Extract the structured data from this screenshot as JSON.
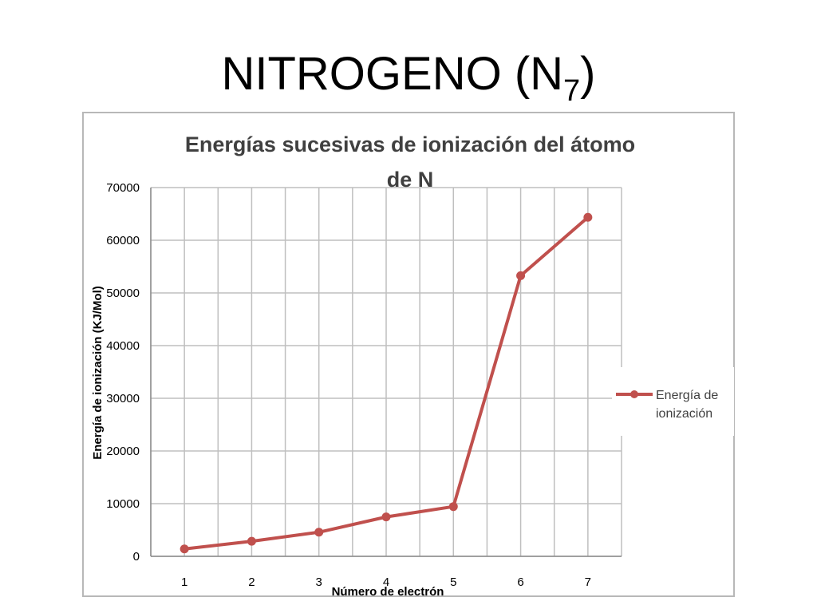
{
  "slide": {
    "title_main": "NITROGENO (N",
    "title_sub": "7",
    "title_end": ")"
  },
  "colors": {
    "series": "#c0504d",
    "grid": "#bfbfbf",
    "frame": "#b8b8b8",
    "text": "#000000"
  },
  "chart_data": {
    "type": "line",
    "title": "Energías sucesivas de ionización del átomo de N",
    "title_lines": [
      "Energías sucesivas de ionización del átomo",
      "de N"
    ],
    "xlabel": "Número de electrón",
    "ylabel": "Energía de ionización (KJ/Mol)",
    "categories": [
      "1",
      "2",
      "3",
      "4",
      "5",
      "6",
      "7"
    ],
    "ylim": [
      0,
      70000
    ],
    "yticks": [
      "0",
      "10000",
      "20000",
      "30000",
      "40000",
      "50000",
      "60000",
      "70000"
    ],
    "grid": true,
    "legend_position": "right",
    "series": [
      {
        "name": "Energía de ionización",
        "name_lines": [
          "Energía de",
          "ionización"
        ],
        "values": [
          1400,
          2860,
          4580,
          7480,
          9440,
          53270,
          64360
        ]
      }
    ]
  }
}
